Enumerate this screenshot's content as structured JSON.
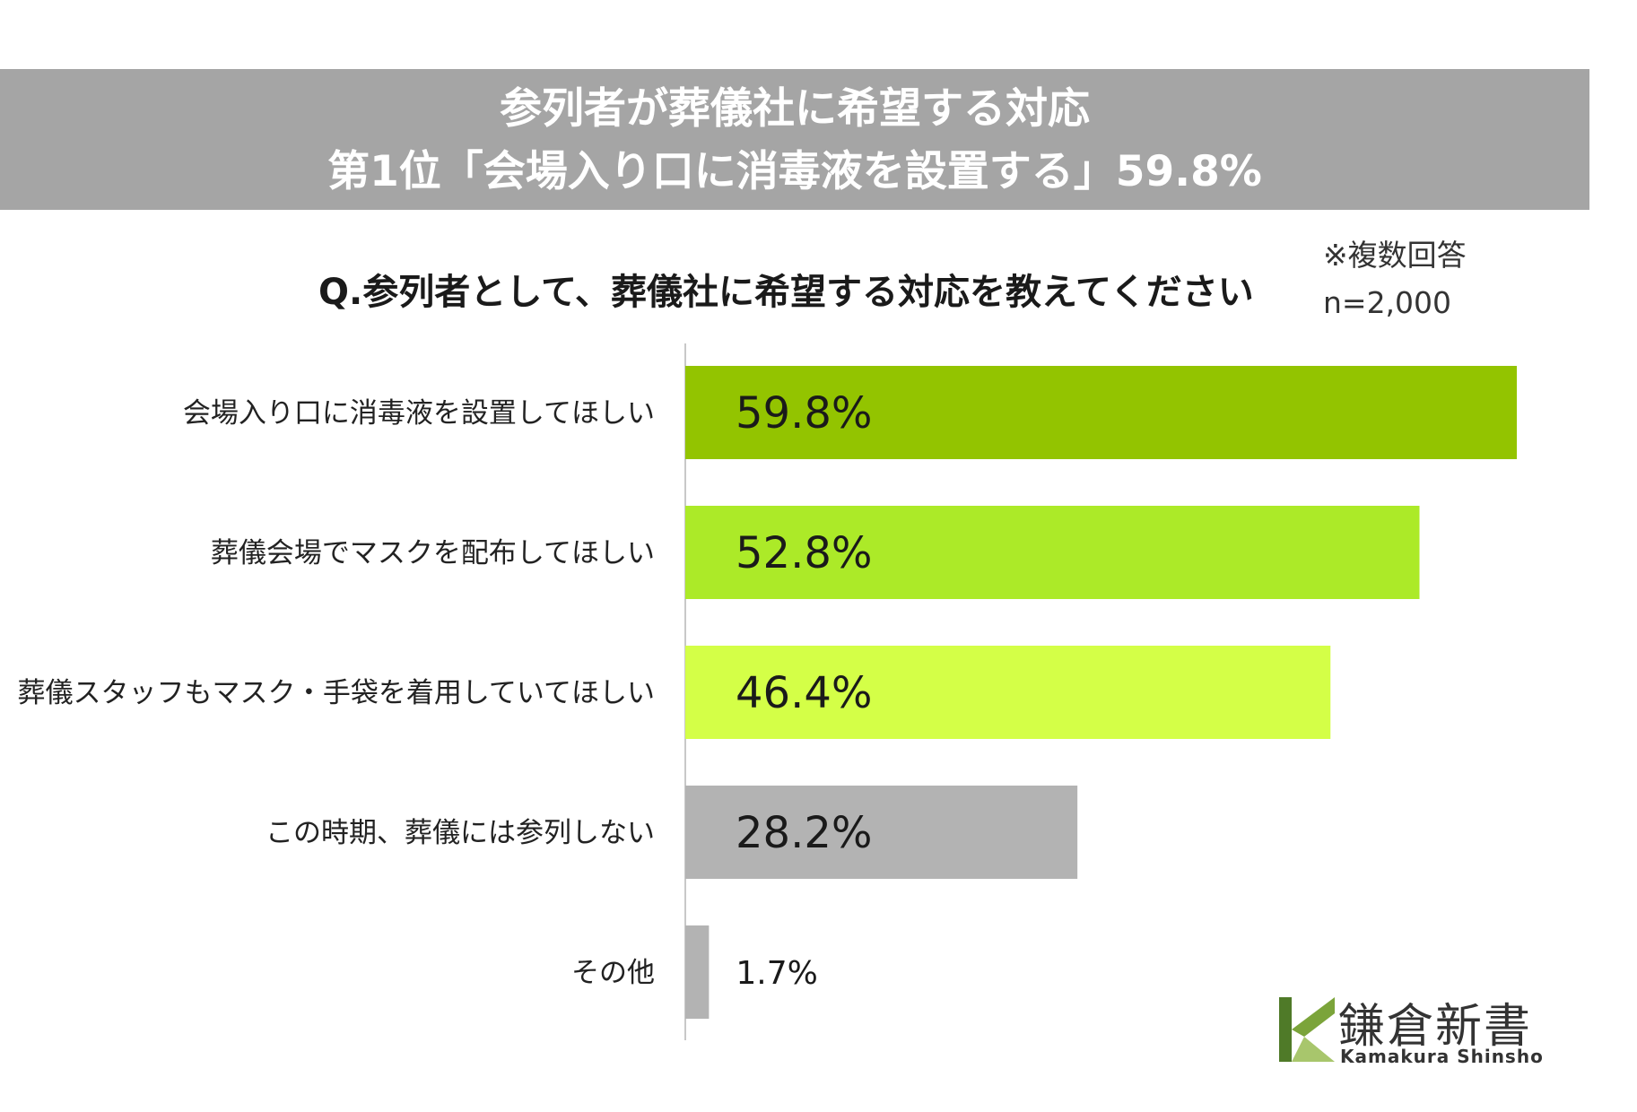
{
  "banner": {
    "line1": "参列者が葬儀社に希望する対応",
    "line2": "第1位「会場入り口に消毒液を設置する」59.8%"
  },
  "question": "Q.参列者として、葬儀社に希望する対応を教えてください",
  "notes": {
    "multiple": "※複数回答",
    "n": "n=2,000"
  },
  "chart_data": {
    "type": "bar",
    "orientation": "horizontal",
    "categories": [
      "会場入り口に消毒液を設置してほしい",
      "葬儀会場でマスクを配布してほしい",
      "葬儀スタッフもマスク・手袋を着用していてほしい",
      "この時期、葬儀には参列しない",
      "その他"
    ],
    "values": [
      59.8,
      52.8,
      46.4,
      28.2,
      1.7
    ],
    "data_labels": [
      "59.8%",
      "52.8%",
      "46.4%",
      "28.2%",
      "1.7%"
    ],
    "colors": [
      "#93c400",
      "#acea28",
      "#d4ff47",
      "#b3b3b3",
      "#b3b3b3"
    ],
    "xlim": [
      0,
      60
    ],
    "grid": false,
    "legend": "none"
  },
  "logo": {
    "name": "鎌倉新書",
    "sub": "Kamakura Shinsho",
    "colors": [
      "#4f7a28",
      "#7ba43a",
      "#a8c66c"
    ]
  }
}
